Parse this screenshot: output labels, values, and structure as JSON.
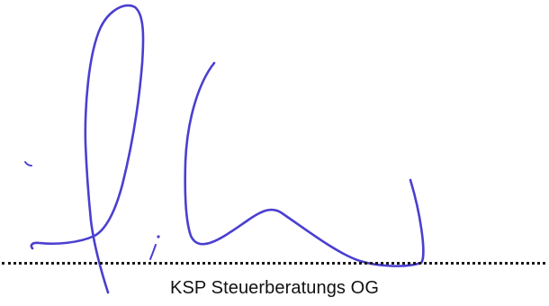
{
  "signature": {
    "ink_color": "#4a3fd0",
    "line_color": "#1a1a1a",
    "signatory": "KSP Steuerberatungs OG"
  }
}
